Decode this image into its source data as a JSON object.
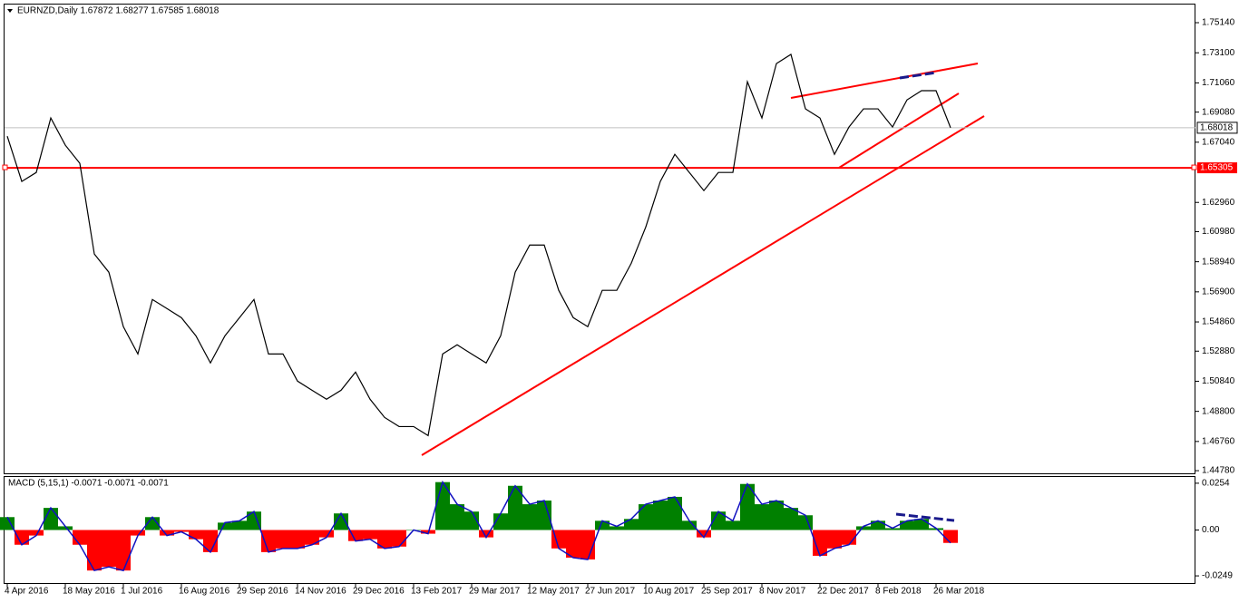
{
  "chart_data": [
    {
      "type": "line",
      "title": "EURNZD,Daily 1.67872 1.68277 1.67585 1.68018",
      "color": "#000000",
      "categories": [
        "4 Apr 2016",
        null,
        null,
        null,
        "18 May 2016",
        null,
        null,
        null,
        "1 Jul 2016",
        null,
        null,
        null,
        "16 Aug 2016",
        null,
        null,
        null,
        "29 Sep 2016",
        null,
        null,
        null,
        "14 Nov 2016",
        null,
        null,
        null,
        "29 Dec 2016",
        null,
        null,
        null,
        "13 Feb 2017",
        null,
        null,
        null,
        "29 Mar 2017",
        null,
        null,
        null,
        "12 May 2017",
        null,
        null,
        null,
        "27 Jun 2017",
        null,
        null,
        null,
        "10 Aug 2017",
        null,
        null,
        null,
        "25 Sep 2017",
        null,
        null,
        null,
        "8 Nov 2017",
        null,
        null,
        null,
        "22 Dec 2017",
        null,
        null,
        null,
        "8 Feb 2018",
        null,
        null,
        null,
        "26 Mar 2018",
        null
      ],
      "values": [
        1.6745,
        1.6438,
        1.6499,
        1.6868,
        1.6684,
        1.6561,
        1.5946,
        1.5823,
        1.5454,
        1.5269,
        1.5638,
        1.5577,
        1.5515,
        1.5392,
        1.5208,
        1.5392,
        1.5515,
        1.5638,
        1.5269,
        1.5269,
        1.5085,
        1.5023,
        1.4962,
        1.5023,
        1.5146,
        1.4962,
        1.4839,
        1.4777,
        1.4777,
        1.4716,
        1.5269,
        1.5331,
        1.5269,
        1.5208,
        1.5392,
        1.5823,
        1.6007,
        1.6007,
        1.57,
        1.5515,
        1.5454,
        1.57,
        1.57,
        1.5884,
        1.613,
        1.6438,
        1.6622,
        1.6499,
        1.6376,
        1.6499,
        1.6499,
        1.7114,
        1.6868,
        1.7237,
        1.7299,
        1.693,
        1.6868,
        1.6622,
        1.6807,
        1.693,
        1.693,
        1.6807,
        1.6991,
        1.7053,
        1.7053,
        1.6802
      ],
      "ylim": [
        1.446,
        1.7637
      ],
      "yticks": [
        {
          "value": 1.4478,
          "label": "1.44780"
        },
        {
          "value": 1.4676,
          "label": "1.46760"
        },
        {
          "value": 1.488,
          "label": "1.48800"
        },
        {
          "value": 1.5084,
          "label": "1.50840"
        },
        {
          "value": 1.5288,
          "label": "1.52880"
        },
        {
          "value": 1.5486,
          "label": "1.54860"
        },
        {
          "value": 1.569,
          "label": "1.56900"
        },
        {
          "value": 1.5894,
          "label": "1.58940"
        },
        {
          "value": 1.6098,
          "label": "1.60980"
        },
        {
          "value": 1.6296,
          "label": "1.62960"
        },
        {
          "value": 1.6704,
          "label": "1.67040"
        },
        {
          "value": 1.6908,
          "label": "1.69080"
        },
        {
          "value": 1.7106,
          "label": "1.71060"
        },
        {
          "value": 1.731,
          "label": "1.73100"
        },
        {
          "value": 1.7514,
          "label": "1.75140"
        }
      ],
      "current_price": 1.68018,
      "level_line": 1.65305,
      "level_color": "#ff0000"
    },
    {
      "type": "bar",
      "title": "MACD (5,15,1) -0.0071 -0.0071 -0.0071",
      "up_color": "#008000",
      "down_color": "#ff0000",
      "line_color": "#1010c0",
      "values": [
        0.007,
        -0.008,
        -0.003,
        0.012,
        0.002,
        -0.008,
        -0.022,
        -0.02,
        -0.022,
        -0.003,
        0.007,
        -0.003,
        -0.001,
        -0.005,
        -0.012,
        0.004,
        0.005,
        0.01,
        -0.012,
        -0.01,
        -0.01,
        -0.008,
        -0.004,
        0.009,
        -0.006,
        -0.005,
        -0.01,
        -0.009,
        0.0,
        -0.002,
        0.026,
        0.014,
        0.01,
        -0.004,
        0.009,
        0.024,
        0.014,
        0.016,
        -0.01,
        -0.015,
        -0.016,
        0.005,
        0.002,
        0.006,
        0.014,
        0.016,
        0.018,
        0.005,
        -0.004,
        0.01,
        0.005,
        0.025,
        0.014,
        0.016,
        0.012,
        0.008,
        -0.014,
        -0.01,
        -0.008,
        0.002,
        0.005,
        0.001,
        0.005,
        0.006,
        0.001,
        -0.007
      ],
      "ylim": [
        -0.0288,
        0.0288
      ],
      "yticks": [
        -0.0249,
        {
          "value": 0,
          "label": "0.00"
        },
        0.0254
      ]
    }
  ]
}
